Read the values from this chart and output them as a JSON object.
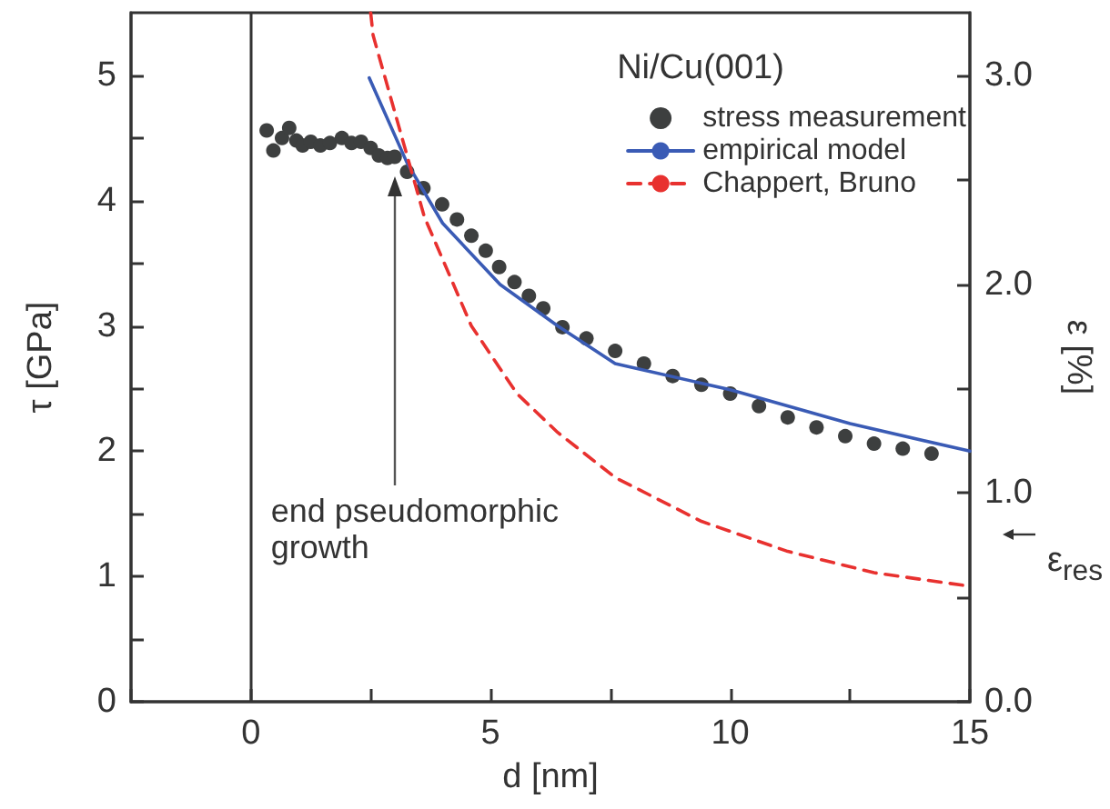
{
  "chart_data": {
    "type": "scatter",
    "xlabel": "d [nm]",
    "ylabel": "τ [GPa]",
    "y2label": "ε [%]",
    "legend_title": "Ni/Cu(001)",
    "legend": "top right",
    "grid": false,
    "xlim": [
      -2.5,
      15
    ],
    "xticks": [
      {
        "value": -2.5,
        "label": null
      },
      0,
      {
        "value": 2.5,
        "label": null
      },
      5,
      {
        "value": 7.5,
        "label": null
      },
      10,
      {
        "value": 12.5,
        "label": null
      },
      15
    ],
    "ylim": [
      0,
      5.5
    ],
    "yticks": [
      0,
      {
        "value": 0.5,
        "label": null
      },
      1,
      {
        "value": 1.5,
        "label": null
      },
      2,
      {
        "value": 2.5,
        "label": null
      },
      3,
      {
        "value": 3.5,
        "label": null
      },
      4,
      {
        "value": 4.5,
        "label": null
      },
      5
    ],
    "y2lim": [
      0,
      3.3
    ],
    "y2ticks": [
      {
        "value": 0,
        "label": "0.0"
      },
      {
        "value": 0.5,
        "label": null
      },
      {
        "value": 1,
        "label": "1.0"
      },
      {
        "value": 1.5,
        "label": null
      },
      {
        "value": 2,
        "label": "2.0"
      },
      {
        "value": 2.5,
        "label": null
      },
      {
        "value": 3,
        "label": "3.0"
      }
    ],
    "ref_lines": [
      {
        "axis": "x",
        "value": 0,
        "color": "#333333",
        "line_style": "solid"
      }
    ],
    "annotations": [
      {
        "text": "end pseudomorphic\ngrowth",
        "x": 3.0,
        "y": 4.2
      },
      "ε$_{res}$"
    ],
    "series": [
      {
        "name": "stress measurement",
        "marker": "circle",
        "color": "#3d3f3f",
        "x": [
          0.33,
          0.47,
          0.65,
          0.8,
          0.95,
          1.08,
          1.25,
          1.45,
          1.65,
          1.9,
          2.1,
          2.3,
          2.5,
          2.67,
          2.85,
          3.0,
          3.26,
          3.6,
          3.99,
          4.3,
          4.6,
          4.9,
          5.18,
          5.5,
          5.8,
          6.1,
          6.5,
          7.0,
          7.6,
          8.2,
          8.8,
          9.4,
          10.0,
          10.6,
          11.2,
          11.8,
          12.4,
          13.0,
          13.6,
          14.2
        ],
        "values": [
          4.56,
          4.4,
          4.5,
          4.58,
          4.48,
          4.44,
          4.47,
          4.44,
          4.46,
          4.5,
          4.46,
          4.47,
          4.42,
          4.36,
          4.34,
          4.35,
          4.23,
          4.1,
          3.97,
          3.85,
          3.72,
          3.6,
          3.47,
          3.35,
          3.24,
          3.14,
          2.99,
          2.9,
          2.8,
          2.7,
          2.6,
          2.53,
          2.46,
          2.36,
          2.27,
          2.19,
          2.12,
          2.06,
          2.02,
          1.98
        ]
      },
      {
        "name": "empirical model",
        "type": "line",
        "marker": "none",
        "line_style": "solid",
        "color": "#3a5bb5",
        "x": [
          2.47,
          3.26,
          4.0,
          5.2,
          6.4,
          7.6,
          10.0,
          12.5,
          15.0
        ],
        "values": [
          4.98,
          4.3,
          3.82,
          3.33,
          3.0,
          2.7,
          2.49,
          2.22,
          2.0
        ]
      },
      {
        "name": "Chappert, Bruno",
        "type": "line",
        "marker": "none",
        "line_style": "dashed",
        "color": "#e8312f",
        "x": [
          2.5,
          2.55,
          3.62,
          4.6,
          5.55,
          6.4,
          7.6,
          9.4,
          11.2,
          13.0,
          14.85
        ],
        "values": [
          5.5,
          5.32,
          3.87,
          3.0,
          2.46,
          2.15,
          1.79,
          1.44,
          1.2,
          1.03,
          0.93
        ]
      }
    ]
  }
}
